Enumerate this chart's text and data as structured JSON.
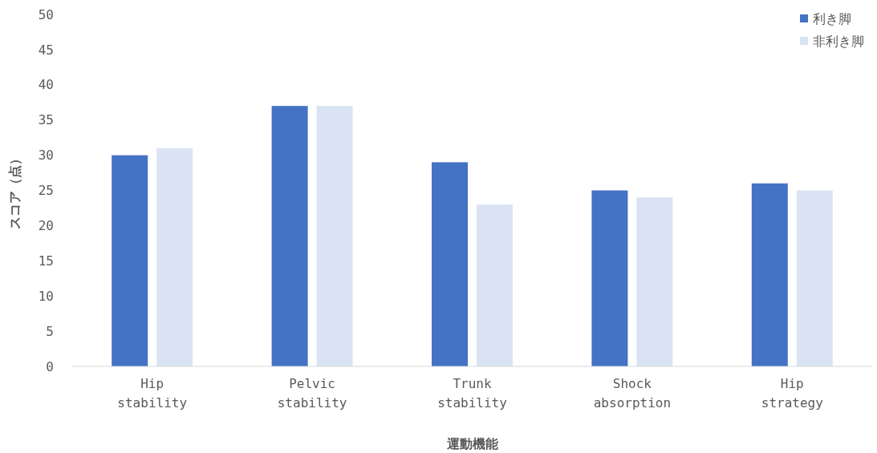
{
  "chart_data": {
    "type": "bar",
    "xlabel": "運動機能",
    "ylabel": "スコア（点）",
    "categories": [
      "Hip stability",
      "Pelvic stability",
      "Trunk stability",
      "Shock absorption",
      "Hip strategy"
    ],
    "series": [
      {
        "name": "利き脚",
        "color": "#4472c4",
        "values": [
          30,
          37,
          29,
          25,
          26
        ]
      },
      {
        "name": "非利き脚",
        "color": "#dae3f3",
        "values": [
          31,
          37,
          23,
          24,
          25
        ]
      }
    ],
    "ylim": [
      0,
      50
    ],
    "yticks": [
      0,
      5,
      10,
      15,
      20,
      25,
      30,
      35,
      40,
      45,
      50
    ],
    "grid": false,
    "legend": "top right"
  }
}
